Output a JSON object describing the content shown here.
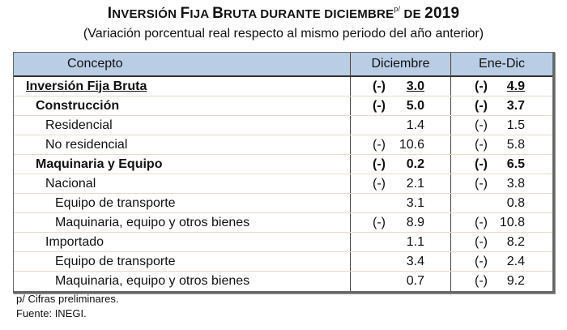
{
  "title": {
    "part1": "I",
    "part1sc": "NVERSIÓN ",
    "part2": "F",
    "part2sc": "IJA ",
    "part3": "B",
    "part3sc": "RUTA DURANTE DICIEMBRE",
    "sup": "p/",
    "part4sc": " DE ",
    "year": "2019"
  },
  "subtitle": "(Variación porcentual real respecto al mismo periodo del año anterior)",
  "table": {
    "headers": [
      "Concepto",
      "Diciembre",
      "Ene-Dic"
    ],
    "rows": [
      {
        "concepto": "Inversión Fija Bruta",
        "dic_sign": "(-)",
        "dic": "3.0",
        "ene_sign": "(-)",
        "ene": "4.9"
      },
      {
        "concepto": "Construcción",
        "dic_sign": "(-)",
        "dic": "5.0",
        "ene_sign": "(-)",
        "ene": "3.7"
      },
      {
        "concepto": "Residencial",
        "dic_sign": "",
        "dic": "1.4",
        "ene_sign": "(-)",
        "ene": "1.5"
      },
      {
        "concepto": "No residencial",
        "dic_sign": "(-)",
        "dic": "10.6",
        "ene_sign": "(-)",
        "ene": "5.8"
      },
      {
        "concepto": "Maquinaria y Equipo",
        "dic_sign": "(-)",
        "dic": "0.2",
        "ene_sign": "(-)",
        "ene": "6.5"
      },
      {
        "concepto": "Nacional",
        "dic_sign": "(-)",
        "dic": "2.1",
        "ene_sign": "(-)",
        "ene": "3.8"
      },
      {
        "concepto": "Equipo de transporte",
        "dic_sign": "",
        "dic": "3.1",
        "ene_sign": "",
        "ene": "0.8"
      },
      {
        "concepto": "Maquinaria, equipo y otros bienes",
        "dic_sign": "(-)",
        "dic": "8.9",
        "ene_sign": "(-)",
        "ene": "10.8"
      },
      {
        "concepto": "Importado",
        "dic_sign": "",
        "dic": "1.1",
        "ene_sign": "(-)",
        "ene": "8.2"
      },
      {
        "concepto": "Equipo de transporte",
        "dic_sign": "",
        "dic": "3.4",
        "ene_sign": "(-)",
        "ene": "2.4"
      },
      {
        "concepto": "Maquinaria, equipo y otros bienes",
        "dic_sign": "",
        "dic": "0.7",
        "ene_sign": "(-)",
        "ene": "9.2"
      }
    ]
  },
  "footnotes": [
    "p/ Cifras preliminares.",
    "Fuente: INEGI."
  ]
}
